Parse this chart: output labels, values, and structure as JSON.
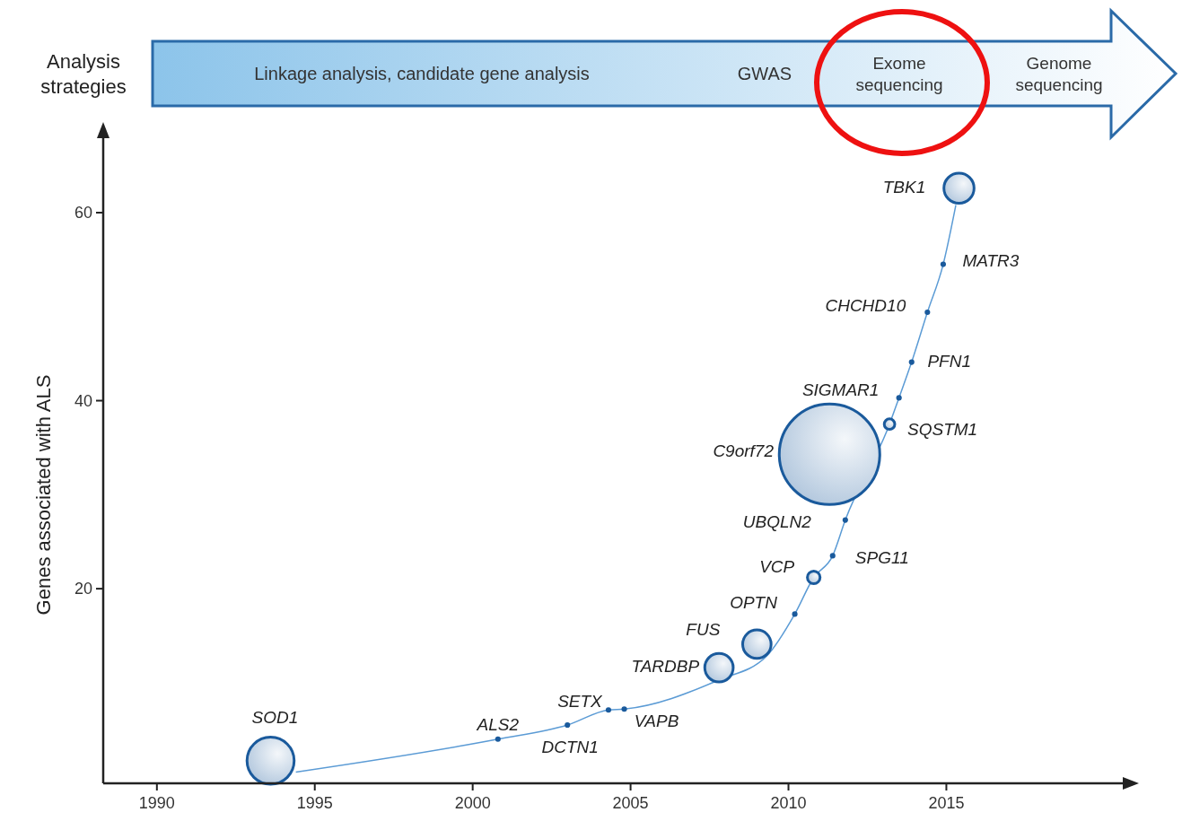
{
  "chart_data": {
    "type": "bubble",
    "ylabel": "Genes associated with ALS",
    "xlim": [
      1988.3,
      2020.7
    ],
    "ylim": [
      -0.7,
      68.3
    ],
    "xticks": [
      1990,
      1995,
      2000,
      2005,
      2010,
      2015
    ],
    "yticks": [
      20,
      40,
      60
    ],
    "series": [
      {
        "type": "line",
        "color": "#5b9bd5",
        "x": [
          1994.4,
          2000.8,
          2003.0,
          2004.3,
          2004.8,
          2007.8,
          2009.3,
          2010.2,
          2010.8,
          2011.4,
          2011.8,
          2013.2,
          2013.5,
          2013.9,
          2014.4,
          2014.9,
          2015.3
        ],
        "values": [
          0.5,
          4.0,
          5.5,
          7.1,
          7.2,
          10.3,
          12.8,
          17.3,
          21.2,
          23.5,
          27.3,
          37.5,
          40.3,
          44.1,
          49.4,
          54.5,
          60.8
        ]
      },
      {
        "color": "#1a5a9c",
        "x": [
          1993.6,
          2000.8,
          2003.0,
          2004.3,
          2004.8,
          2007.8,
          2009.0,
          2010.2,
          2010.8,
          2011.4,
          2011.8,
          2011.3,
          2013.2,
          2013.5,
          2013.9,
          2014.4,
          2014.9,
          2015.4
        ],
        "values": [
          1.7,
          4.0,
          5.5,
          7.1,
          7.2,
          11.6,
          14.1,
          17.3,
          21.2,
          23.5,
          27.3,
          34.3,
          37.5,
          40.3,
          44.1,
          49.4,
          54.5,
          62.6
        ],
        "sizes": [
          0.22,
          0.003,
          0.003,
          0.003,
          0.003,
          0.08,
          0.08,
          0.003,
          0.016,
          0.003,
          0.003,
          1,
          0.011,
          0.003,
          0.003,
          0.003,
          0.003,
          0.09
        ]
      }
    ],
    "annotations": [
      "Analysis strategies",
      "Linkage analysis, candidate gene analysis",
      "GWAS",
      "Exome sequencing",
      "Genome sequencing",
      {
        "text": "SOD1",
        "x": 1993.6,
        "y": 1.7
      },
      {
        "text": "ALS2",
        "x": 2000.8,
        "y": 4.0
      },
      {
        "text": "DCTN1",
        "x": 2003.0,
        "y": 5.5
      },
      {
        "text": "SETX",
        "x": 2004.3,
        "y": 7.1
      },
      {
        "text": "VAPB",
        "x": 2004.8,
        "y": 7.2
      },
      {
        "text": "TARDBP",
        "x": 2007.8,
        "y": 11.6
      },
      {
        "text": "FUS",
        "x": 2009.0,
        "y": 14.1
      },
      {
        "text": "OPTN",
        "x": 2010.2,
        "y": 17.3
      },
      {
        "text": "VCP",
        "x": 2010.8,
        "y": 21.2
      },
      {
        "text": "SPG11",
        "x": 2011.4,
        "y": 23.5
      },
      {
        "text": "UBQLN2",
        "x": 2011.8,
        "y": 27.3
      },
      "C9orf72",
      {
        "text": "SQSTM1",
        "x": 2013.2,
        "y": 37.5
      },
      {
        "text": "SIGMAR1",
        "x": 2013.5,
        "y": 40.3
      },
      {
        "text": "PFN1",
        "x": 2013.9,
        "y": 44.1
      },
      {
        "text": "CHCHD10",
        "x": 2014.4,
        "y": 49.4
      },
      {
        "text": "MATR3",
        "x": 2014.9,
        "y": 54.5
      },
      {
        "text": "TBK1",
        "x": 2015.4,
        "y": 62.6
      }
    ]
  }
}
